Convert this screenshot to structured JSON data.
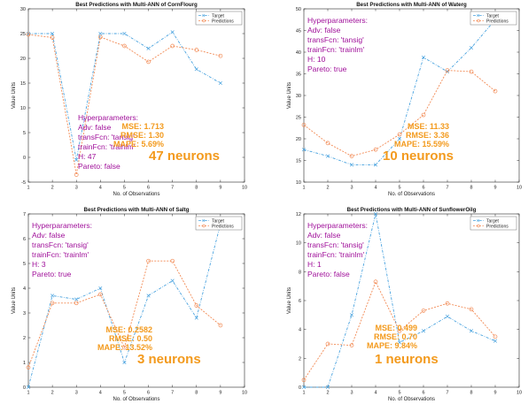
{
  "colors": {
    "target": "#4aa3df",
    "predictions": "#f28a54",
    "hyperparameters_text": "#a0109a",
    "metrics_text": "#f39a1d"
  },
  "chart_data": [
    {
      "type": "line",
      "title": "Best Predictions with Multi-ANN of CornFlourg",
      "xlabel": "No. of Observations",
      "ylabel": "Value Units",
      "xlim": [
        1,
        10
      ],
      "ylim": [
        -5,
        30
      ],
      "xticks": [
        1,
        2,
        3,
        4,
        5,
        6,
        7,
        8,
        9,
        10
      ],
      "yticks": [
        -5,
        0,
        5,
        10,
        15,
        20,
        25,
        30
      ],
      "legend_position": "top-right",
      "grid": false,
      "series": [
        {
          "name": "Target",
          "x": [
            1,
            2,
            3,
            4,
            5,
            6,
            7,
            8,
            9
          ],
          "values": [
            25,
            25,
            -0.5,
            25,
            25,
            22,
            25.3,
            17.8,
            15
          ]
        },
        {
          "name": "Predictions",
          "x": [
            1,
            2,
            3,
            4,
            5,
            6,
            7,
            8,
            9
          ],
          "values": [
            24.8,
            24.2,
            -3.5,
            24.3,
            22.5,
            19.3,
            22.5,
            21.7,
            20.5
          ]
        }
      ],
      "hyperparameters": [
        "Hyperparameters:",
        "Adv: false",
        "transFcn: 'tansig'",
        "trainFcn: 'trainlm'",
        "H: 47",
        "Pareto: false"
      ],
      "metrics": [
        "MSE: 1.713",
        "RMSE: 1.30",
        "MAPE: 5.69%"
      ],
      "neurons": "47 neurons"
    },
    {
      "type": "line",
      "title": "Best Predictions with Multi-ANN of Waterg",
      "xlabel": "No. of Observations",
      "ylabel": "Value Units",
      "xlim": [
        1,
        10
      ],
      "ylim": [
        10,
        50
      ],
      "xticks": [
        1,
        2,
        3,
        4,
        5,
        6,
        7,
        8,
        9,
        10
      ],
      "yticks": [
        10,
        15,
        20,
        25,
        30,
        35,
        40,
        45,
        50
      ],
      "legend_position": "top-right",
      "grid": false,
      "series": [
        {
          "name": "Target",
          "x": [
            1,
            2,
            3,
            4,
            5,
            6,
            7,
            8,
            9
          ],
          "values": [
            17.5,
            16,
            14,
            14,
            20,
            38.8,
            35.5,
            41,
            47.5
          ]
        },
        {
          "name": "Predictions",
          "x": [
            1,
            2,
            3,
            4,
            5,
            6,
            7,
            8,
            9
          ],
          "values": [
            23.2,
            19,
            16,
            17.5,
            21,
            25.5,
            35.8,
            35.5,
            31
          ]
        }
      ],
      "hyperparameters": [
        "Hyperparameters:",
        "Adv: false",
        "transFcn: 'tansig'",
        "trainFcn: 'trainlm'",
        "H: 10",
        "Pareto: true"
      ],
      "metrics": [
        "MSE: 11.33",
        "RMSE: 3.36",
        "MAPE: 15.59%"
      ],
      "neurons": "10 neurons"
    },
    {
      "type": "line",
      "title": "Best Predictions with Multi-ANN of Saltg",
      "xlabel": "No. of Observations",
      "ylabel": "Value Units",
      "xlim": [
        1,
        10
      ],
      "ylim": [
        0,
        7
      ],
      "xticks": [
        1,
        2,
        3,
        4,
        5,
        6,
        7,
        8,
        9,
        10
      ],
      "yticks": [
        0,
        1,
        2,
        3,
        4,
        5,
        6,
        7
      ],
      "legend_position": "top-right",
      "grid": false,
      "series": [
        {
          "name": "Target",
          "x": [
            1,
            2,
            3,
            4,
            5,
            6,
            7,
            8,
            9
          ],
          "values": [
            0,
            3.7,
            3.55,
            4,
            1,
            3.7,
            4.3,
            2.8,
            6.6
          ]
        },
        {
          "name": "Predictions",
          "x": [
            1,
            2,
            3,
            4,
            5,
            6,
            7,
            8,
            9
          ],
          "values": [
            0.8,
            3.4,
            3.4,
            3.75,
            1.6,
            5.1,
            5.1,
            3.3,
            2.5
          ]
        }
      ],
      "hyperparameters": [
        "Hyperparameters:",
        "Adv: false",
        "transFcn: 'tansig'",
        "trainFcn: 'trainlm'",
        "H: 3",
        "Pareto: true"
      ],
      "metrics": [
        "MSE: 0.2582",
        "RMSE: 0.50",
        "MAPE: 13.52%"
      ],
      "neurons": "3 neurons"
    },
    {
      "type": "line",
      "title": "Best Predictions with Multi-ANN of SunflowerOilg",
      "xlabel": "No. of Observations",
      "ylabel": "Value Units",
      "xlim": [
        1,
        10
      ],
      "ylim": [
        0,
        12
      ],
      "xticks": [
        1,
        2,
        3,
        4,
        5,
        6,
        7,
        8,
        9,
        10
      ],
      "yticks": [
        0,
        2,
        4,
        6,
        8,
        10,
        12
      ],
      "legend_position": "top-right",
      "grid": false,
      "series": [
        {
          "name": "Target",
          "x": [
            1,
            2,
            3,
            4,
            5,
            6,
            7,
            8,
            9
          ],
          "values": [
            0,
            0,
            5,
            12,
            3.1,
            3.9,
            4.9,
            3.9,
            3.2
          ]
        },
        {
          "name": "Predictions",
          "x": [
            1,
            2,
            3,
            4,
            5,
            6,
            7,
            8,
            9
          ],
          "values": [
            0.5,
            3,
            2.9,
            7.3,
            3.9,
            5.3,
            5.8,
            5.4,
            3.5
          ]
        }
      ],
      "hyperparameters": [
        "Hyperparameters:",
        "Adv: false",
        "transFcn: 'tansig'",
        "trainFcn: 'trainlm'",
        "H: 1",
        "Pareto: false"
      ],
      "metrics": [
        "MSE: 0.499",
        "RMSE: 0.70",
        "MAPE: 9.84%"
      ],
      "neurons": "1 neurons"
    }
  ]
}
